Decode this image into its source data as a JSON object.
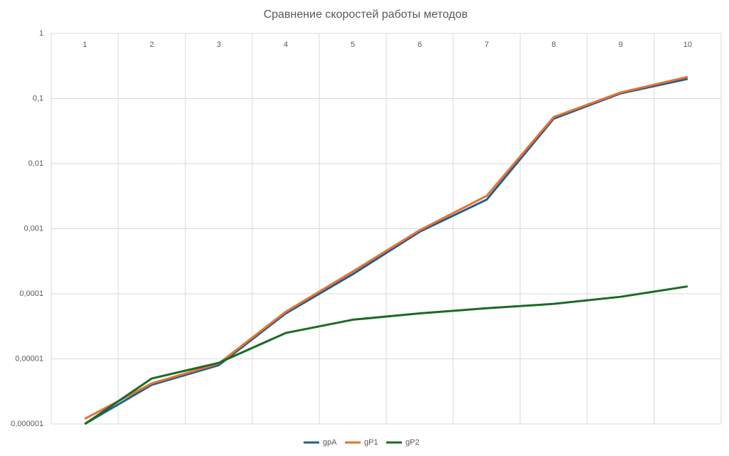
{
  "chart_data": {
    "type": "line",
    "title": "Сравнение скоростей работы методов",
    "categories": [
      "1",
      "2",
      "3",
      "4",
      "5",
      "6",
      "7",
      "8",
      "9",
      "10"
    ],
    "yscale": "log",
    "grid": true,
    "legend": "bottom",
    "ylim": [
      1e-06,
      1
    ],
    "yticks": [
      1,
      {
        "value": 0.1,
        "label": "0,1"
      },
      {
        "value": 0.01,
        "label": "0,01"
      },
      {
        "value": 0.001,
        "label": "0,001"
      },
      {
        "value": 0.0001,
        "label": "0,0001"
      },
      {
        "value": 1e-05,
        "label": "0,00001"
      },
      {
        "value": 1e-06,
        "label": "0,000001"
      }
    ],
    "series": [
      {
        "name": "gpA",
        "color": "#215f8b",
        "values": [
          1e-06,
          4e-06,
          8e-06,
          5e-05,
          0.0002,
          0.0009,
          0.0028,
          0.049,
          0.12,
          0.2
        ]
      },
      {
        "name": "gP1",
        "color": "#e97132",
        "values": [
          1.2e-06,
          4.2e-06,
          8.5e-06,
          5.3e-05,
          0.00022,
          0.00095,
          0.0032,
          0.052,
          0.124,
          0.215
        ]
      },
      {
        "name": "gP2",
        "color": "#196b24",
        "values": [
          1e-06,
          5e-06,
          8.7e-06,
          2.5e-05,
          4e-05,
          5e-05,
          6e-05,
          7e-05,
          9e-05,
          0.00013
        ]
      }
    ]
  }
}
